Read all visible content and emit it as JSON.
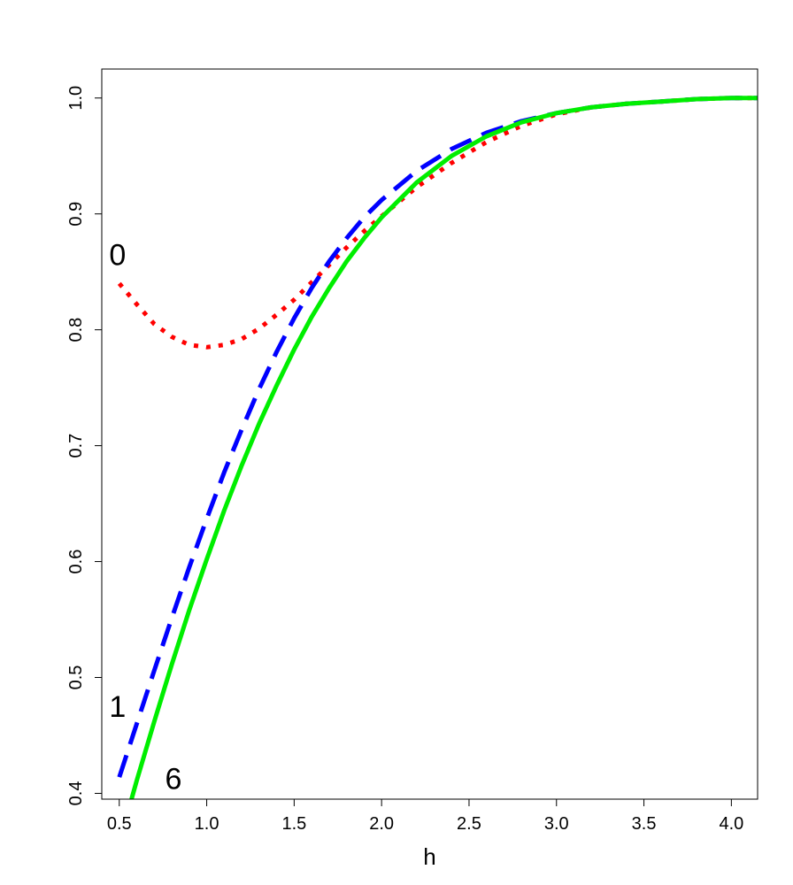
{
  "chart_data": {
    "type": "line",
    "title": "",
    "xlabel": "h",
    "ylabel": "",
    "xlim": [
      0.4,
      4.15
    ],
    "ylim": [
      0.395,
      1.025
    ],
    "xticks": [
      "0.5",
      "1.0",
      "1.5",
      "2.0",
      "2.5",
      "3.0",
      "3.5",
      "4.0"
    ],
    "yticks": [
      "0.4",
      "0.5",
      "0.6",
      "0.7",
      "0.8",
      "0.9",
      "1.0"
    ],
    "grid": false,
    "series": [
      {
        "name": "0",
        "color": "#ff0000",
        "style": "dotted",
        "x": [
          0.5,
          0.6,
          0.7,
          0.8,
          0.9,
          1.0,
          1.1,
          1.2,
          1.3,
          1.4,
          1.5,
          1.6,
          1.7,
          1.8,
          1.9,
          2.0,
          2.2,
          2.4,
          2.6,
          2.8,
          3.0,
          3.2,
          3.4,
          3.6,
          3.8,
          4.0,
          4.15
        ],
        "y": [
          0.84,
          0.822,
          0.805,
          0.794,
          0.787,
          0.785,
          0.787,
          0.792,
          0.801,
          0.813,
          0.826,
          0.841,
          0.856,
          0.871,
          0.885,
          0.898,
          0.923,
          0.944,
          0.962,
          0.976,
          0.986,
          0.992,
          0.995,
          0.997,
          0.999,
          1.0,
          1.0
        ]
      },
      {
        "name": "1",
        "color": "#0000ff",
        "style": "dashed",
        "x": [
          0.5,
          0.6,
          0.7,
          0.8,
          0.9,
          1.0,
          1.1,
          1.2,
          1.3,
          1.4,
          1.5,
          1.6,
          1.7,
          1.8,
          1.9,
          2.0,
          2.2,
          2.4,
          2.6,
          2.8,
          3.0,
          3.2,
          3.4,
          3.6,
          3.8,
          4.0,
          4.15
        ],
        "y": [
          0.414,
          0.46,
          0.506,
          0.551,
          0.595,
          0.637,
          0.677,
          0.714,
          0.749,
          0.781,
          0.81,
          0.836,
          0.859,
          0.879,
          0.897,
          0.912,
          0.937,
          0.956,
          0.97,
          0.98,
          0.987,
          0.992,
          0.995,
          0.997,
          0.999,
          1.0,
          1.0
        ]
      },
      {
        "name": "6",
        "color": "#00ee00",
        "style": "solid",
        "x": [
          0.57,
          0.6,
          0.7,
          0.8,
          0.9,
          1.0,
          1.1,
          1.2,
          1.3,
          1.4,
          1.5,
          1.6,
          1.7,
          1.8,
          1.9,
          2.0,
          2.2,
          2.4,
          2.6,
          2.8,
          3.0,
          3.2,
          3.4,
          3.6,
          3.8,
          4.0,
          4.15
        ],
        "y": [
          0.395,
          0.411,
          0.462,
          0.511,
          0.558,
          0.602,
          0.644,
          0.683,
          0.719,
          0.752,
          0.783,
          0.811,
          0.836,
          0.859,
          0.879,
          0.897,
          0.927,
          0.95,
          0.967,
          0.979,
          0.987,
          0.992,
          0.995,
          0.997,
          0.999,
          1.0,
          1.0
        ]
      }
    ],
    "annotations": [
      {
        "text": "0",
        "x": 0.49,
        "y": 0.865
      },
      {
        "text": "1",
        "x": 0.49,
        "y": 0.475
      },
      {
        "text": "6",
        "x": 0.81,
        "y": 0.413
      }
    ]
  }
}
